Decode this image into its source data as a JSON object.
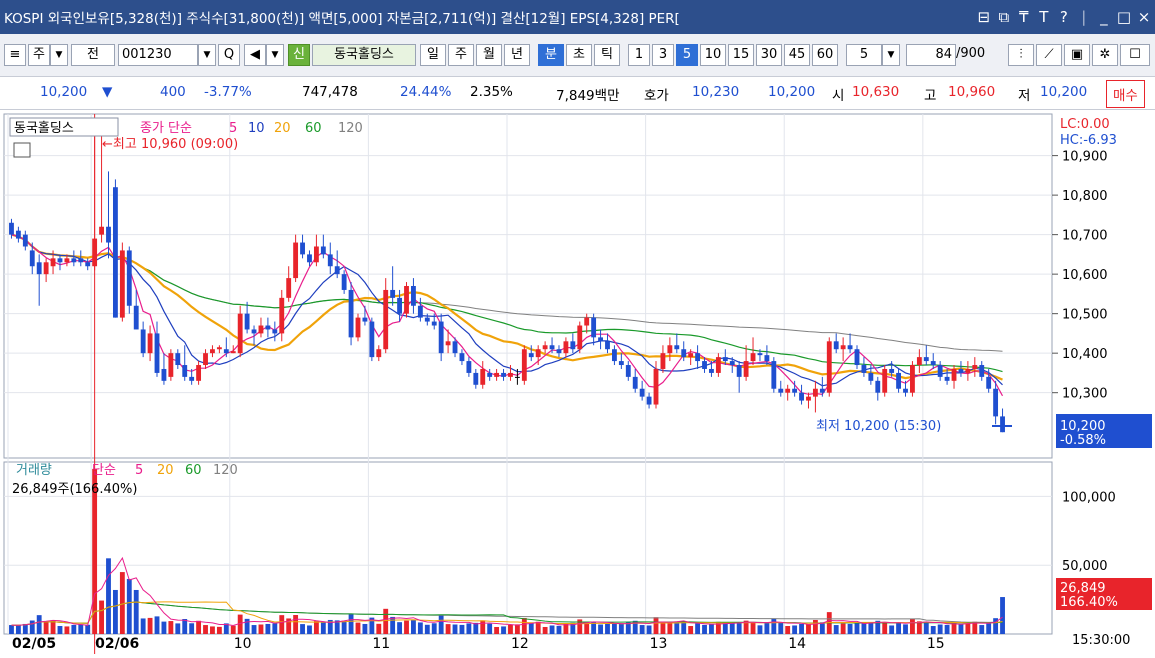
{
  "titlebar": {
    "text": "KOSPI 외국인보유[5,328(천)] 주식수[31,800(천)] 액면[5,000] 자본금[2,711(억)] 결산[12월] EPS[4,328] PER[",
    "icons": [
      "window-icon",
      "restore-icon",
      "pin-icon",
      "font-icon",
      "help-icon",
      "minimize-icon",
      "maximize-icon",
      "close-icon"
    ],
    "icon_glyphs": [
      "⊟",
      "⧉",
      "₸",
      "T",
      "?",
      "_",
      "□",
      "×"
    ]
  },
  "toolbar": {
    "market": "주",
    "all": "전",
    "code": "001230",
    "search_glyph": "Q",
    "speaker_glyph": "◀",
    "new_badge": "신",
    "stock_name": "동국홀딩스",
    "periods": [
      "일",
      "주",
      "월",
      "년",
      "분",
      "초",
      "틱"
    ],
    "intervals": [
      "1",
      "3",
      "5",
      "10",
      "15",
      "30",
      "45",
      "60"
    ],
    "selected_period": "분",
    "selected_interval": "5",
    "interval_value": "5",
    "count": "84",
    "total": "/900"
  },
  "quote": {
    "price": "10,200",
    "arrow": "▼",
    "change": "400",
    "change_pct": "-3.77%",
    "volume": "747,478",
    "turnover_pct": "24.44%",
    "pct2": "2.35%",
    "amount": "7,849백만",
    "hoga_label": "호가",
    "ask": "10,230",
    "bid": "10,200",
    "open_label": "시",
    "open": "10,630",
    "high_label": "고",
    "high": "10,960",
    "low_label": "저",
    "low": "10,200",
    "trade_label": "매수"
  },
  "colors": {
    "up": "#e8242b",
    "down": "#1f4fd0",
    "ma5": "#e91e8c",
    "ma10": "#1f3fbf",
    "ma20": "#f0a30a",
    "ma60": "#1a9a2a",
    "ma120": "#808080",
    "flat": "#000000"
  },
  "chart_data": [
    {
      "type": "candlestick",
      "legend": {
        "name": "동국홀딩스",
        "label": "종가 단순",
        "ma": [
          "5",
          "10",
          "20",
          "60",
          "120"
        ]
      },
      "x_labels": [
        "02/05",
        "02/06",
        "10",
        "11",
        "12",
        "13",
        "14",
        "15"
      ],
      "x_label_positions": [
        0,
        12,
        32,
        52,
        72,
        92,
        112,
        132
      ],
      "ylim": [
        10160,
        10980
      ],
      "y_ticks": [
        {
          "v": 10900,
          "label": "10,900"
        },
        {
          "v": 10800,
          "label": "10,800"
        },
        {
          "v": 10700,
          "label": "10,700"
        },
        {
          "v": 10600,
          "label": "10,600"
        },
        {
          "v": 10500,
          "label": "10,500"
        },
        {
          "v": 10400,
          "label": "10,400"
        },
        {
          "v": 10300,
          "label": "10,300"
        }
      ],
      "lc": "LC:0.00",
      "hc": "HC:-6.93",
      "current": {
        "value": 10200,
        "label": "10,200",
        "pct": "-0.58%"
      },
      "annotations": {
        "high": "←최고 10,960 (09:00)",
        "low": "최저 10,200 (15:30)"
      },
      "high_marker_index": 12,
      "candles": [
        [
          10730,
          10740,
          10690,
          10700
        ],
        [
          10710,
          10720,
          10680,
          10690
        ],
        [
          10700,
          10710,
          10660,
          10670
        ],
        [
          10660,
          10680,
          10600,
          10620
        ],
        [
          10630,
          10650,
          10520,
          10600
        ],
        [
          10600,
          10640,
          10580,
          10630
        ],
        [
          10620,
          10660,
          10600,
          10640
        ],
        [
          10640,
          10650,
          10610,
          10630
        ],
        [
          10630,
          10650,
          10620,
          10640
        ],
        [
          10640,
          10660,
          10620,
          10630
        ],
        [
          10640,
          10660,
          10620,
          10630
        ],
        [
          10630,
          10640,
          10610,
          10620
        ],
        [
          10620,
          10960,
          10610,
          10690
        ],
        [
          10700,
          10950,
          10680,
          10720
        ],
        [
          10720,
          10860,
          10640,
          10680
        ],
        [
          10820,
          10840,
          10490,
          10490
        ],
        [
          10490,
          10680,
          10480,
          10660
        ],
        [
          10660,
          10670,
          10500,
          10520
        ],
        [
          10520,
          10560,
          10460,
          10460
        ],
        [
          10460,
          10480,
          10390,
          10400
        ],
        [
          10400,
          10470,
          10380,
          10450
        ],
        [
          10450,
          10480,
          10340,
          10350
        ],
        [
          10360,
          10400,
          10320,
          10330
        ],
        [
          10340,
          10410,
          10330,
          10400
        ],
        [
          10400,
          10410,
          10360,
          10370
        ],
        [
          10370,
          10420,
          10330,
          10340
        ],
        [
          10340,
          10360,
          10320,
          10330
        ],
        [
          10330,
          10380,
          10320,
          10370
        ],
        [
          10370,
          10410,
          10360,
          10400
        ],
        [
          10400,
          10420,
          10390,
          10410
        ],
        [
          10410,
          10420,
          10400,
          10415
        ],
        [
          10410,
          10440,
          10390,
          10400
        ],
        [
          10400,
          10420,
          10400,
          10405
        ],
        [
          10400,
          10520,
          10390,
          10500
        ],
        [
          10500,
          10530,
          10450,
          10460
        ],
        [
          10460,
          10470,
          10420,
          10450
        ],
        [
          10450,
          10490,
          10440,
          10470
        ],
        [
          10470,
          10490,
          10440,
          10460
        ],
        [
          10460,
          10480,
          10430,
          10450
        ],
        [
          10450,
          10560,
          10430,
          10540
        ],
        [
          10540,
          10620,
          10530,
          10590
        ],
        [
          10590,
          10700,
          10580,
          10680
        ],
        [
          10680,
          10700,
          10640,
          10650
        ],
        [
          10650,
          10660,
          10620,
          10630
        ],
        [
          10630,
          10700,
          10620,
          10670
        ],
        [
          10670,
          10700,
          10640,
          10650
        ],
        [
          10650,
          10680,
          10600,
          10620
        ],
        [
          10620,
          10660,
          10590,
          10600
        ],
        [
          10600,
          10610,
          10550,
          10560
        ],
        [
          10560,
          10580,
          10420,
          10440
        ],
        [
          10440,
          10500,
          10430,
          10490
        ],
        [
          10490,
          10520,
          10470,
          10480
        ],
        [
          10480,
          10490,
          10380,
          10390
        ],
        [
          10390,
          10420,
          10380,
          10410
        ],
        [
          10410,
          10590,
          10400,
          10560
        ],
        [
          10560,
          10620,
          10520,
          10540
        ],
        [
          10540,
          10560,
          10480,
          10500
        ],
        [
          10500,
          10580,
          10490,
          10570
        ],
        [
          10570,
          10590,
          10500,
          10520
        ],
        [
          10520,
          10540,
          10480,
          10490
        ],
        [
          10490,
          10500,
          10470,
          10480
        ],
        [
          10480,
          10500,
          10460,
          10470
        ],
        [
          10480,
          10500,
          10380,
          10400
        ],
        [
          10420,
          10460,
          10400,
          10430
        ],
        [
          10430,
          10440,
          10390,
          10400
        ],
        [
          10400,
          10410,
          10370,
          10380
        ],
        [
          10380,
          10390,
          10340,
          10350
        ],
        [
          10350,
          10360,
          10310,
          10320
        ],
        [
          10320,
          10380,
          10310,
          10360
        ],
        [
          10350,
          10360,
          10330,
          10340
        ],
        [
          10340,
          10360,
          10330,
          10350
        ],
        [
          10350,
          10360,
          10330,
          10340
        ],
        [
          10340,
          10370,
          10330,
          10350
        ],
        [
          10340,
          10360,
          10320,
          10340
        ],
        [
          10330,
          10420,
          10320,
          10410
        ],
        [
          10400,
          10420,
          10380,
          10390
        ],
        [
          10390,
          10420,
          10370,
          10410
        ],
        [
          10410,
          10430,
          10400,
          10420
        ],
        [
          10420,
          10440,
          10400,
          10410
        ],
        [
          10410,
          10420,
          10390,
          10400
        ],
        [
          10400,
          10440,
          10390,
          10430
        ],
        [
          10430,
          10450,
          10400,
          10410
        ],
        [
          10410,
          10480,
          10400,
          10470
        ],
        [
          10470,
          10500,
          10450,
          10490
        ],
        [
          10490,
          10500,
          10420,
          10440
        ],
        [
          10440,
          10460,
          10410,
          10430
        ],
        [
          10430,
          10450,
          10400,
          10410
        ],
        [
          10410,
          10420,
          10370,
          10380
        ],
        [
          10380,
          10400,
          10360,
          10370
        ],
        [
          10370,
          10380,
          10330,
          10340
        ],
        [
          10340,
          10360,
          10300,
          10310
        ],
        [
          10310,
          10330,
          10280,
          10290
        ],
        [
          10290,
          10300,
          10260,
          10270
        ],
        [
          10270,
          10380,
          10260,
          10360
        ],
        [
          10360,
          10420,
          10350,
          10400
        ],
        [
          10400,
          10440,
          10380,
          10420
        ],
        [
          10420,
          10450,
          10400,
          10410
        ],
        [
          10410,
          10430,
          10380,
          10390
        ],
        [
          10390,
          10410,
          10370,
          10400
        ],
        [
          10400,
          10420,
          10360,
          10380
        ],
        [
          10380,
          10390,
          10350,
          10360
        ],
        [
          10360,
          10380,
          10340,
          10350
        ],
        [
          10350,
          10400,
          10340,
          10390
        ],
        [
          10390,
          10410,
          10370,
          10380
        ],
        [
          10380,
          10390,
          10350,
          10370
        ],
        [
          10370,
          10380,
          10300,
          10340
        ],
        [
          10340,
          10420,
          10330,
          10380
        ],
        [
          10380,
          10440,
          10370,
          10400
        ],
        [
          10400,
          10410,
          10380,
          10395
        ],
        [
          10395,
          10420,
          10370,
          10380
        ],
        [
          10380,
          10390,
          10300,
          10310
        ],
        [
          10310,
          10330,
          10290,
          10300
        ],
        [
          10300,
          10320,
          10280,
          10310
        ],
        [
          10310,
          10330,
          10290,
          10300
        ],
        [
          10300,
          10320,
          10270,
          10280
        ],
        [
          10280,
          10300,
          10260,
          10290
        ],
        [
          10290,
          10330,
          10250,
          10310
        ],
        [
          10310,
          10340,
          10290,
          10300
        ],
        [
          10300,
          10440,
          10290,
          10430
        ],
        [
          10430,
          10450,
          10400,
          10410
        ],
        [
          10410,
          10440,
          10380,
          10420
        ],
        [
          10420,
          10450,
          10400,
          10410
        ],
        [
          10410,
          10420,
          10360,
          10370
        ],
        [
          10370,
          10390,
          10340,
          10350
        ],
        [
          10350,
          10370,
          10320,
          10330
        ],
        [
          10330,
          10340,
          10280,
          10300
        ],
        [
          10300,
          10370,
          10290,
          10360
        ],
        [
          10360,
          10380,
          10340,
          10350
        ],
        [
          10350,
          10360,
          10300,
          10310
        ],
        [
          10310,
          10330,
          10290,
          10300
        ],
        [
          10300,
          10380,
          10290,
          10370
        ],
        [
          10370,
          10410,
          10350,
          10390
        ],
        [
          10390,
          10420,
          10370,
          10380
        ],
        [
          10380,
          10400,
          10360,
          10370
        ],
        [
          10370,
          10380,
          10330,
          10340
        ],
        [
          10340,
          10360,
          10320,
          10330
        ],
        [
          10330,
          10370,
          10310,
          10360
        ],
        [
          10360,
          10380,
          10340,
          10350
        ],
        [
          10350,
          10380,
          10330,
          10360
        ],
        [
          10360,
          10390,
          10340,
          10370
        ],
        [
          10370,
          10380,
          10330,
          10340
        ],
        [
          10340,
          10360,
          10300,
          10310
        ],
        [
          10310,
          10330,
          10220,
          10240
        ],
        [
          10240,
          10260,
          10200,
          10200
        ]
      ]
    },
    {
      "type": "bar",
      "legend": {
        "name": "거래량",
        "label": "단순",
        "ma": [
          "5",
          "20",
          "60",
          "120"
        ]
      },
      "info": "26,849주(166.40%)",
      "ylim": [
        0,
        125000
      ],
      "y_ticks": [
        {
          "v": 100000,
          "label": "100,000"
        },
        {
          "v": 50000,
          "label": "50,000"
        }
      ],
      "current": {
        "value": 26849,
        "label": "26,849",
        "pct": "166.40%"
      },
      "time_label": "15:30:00"
    }
  ]
}
